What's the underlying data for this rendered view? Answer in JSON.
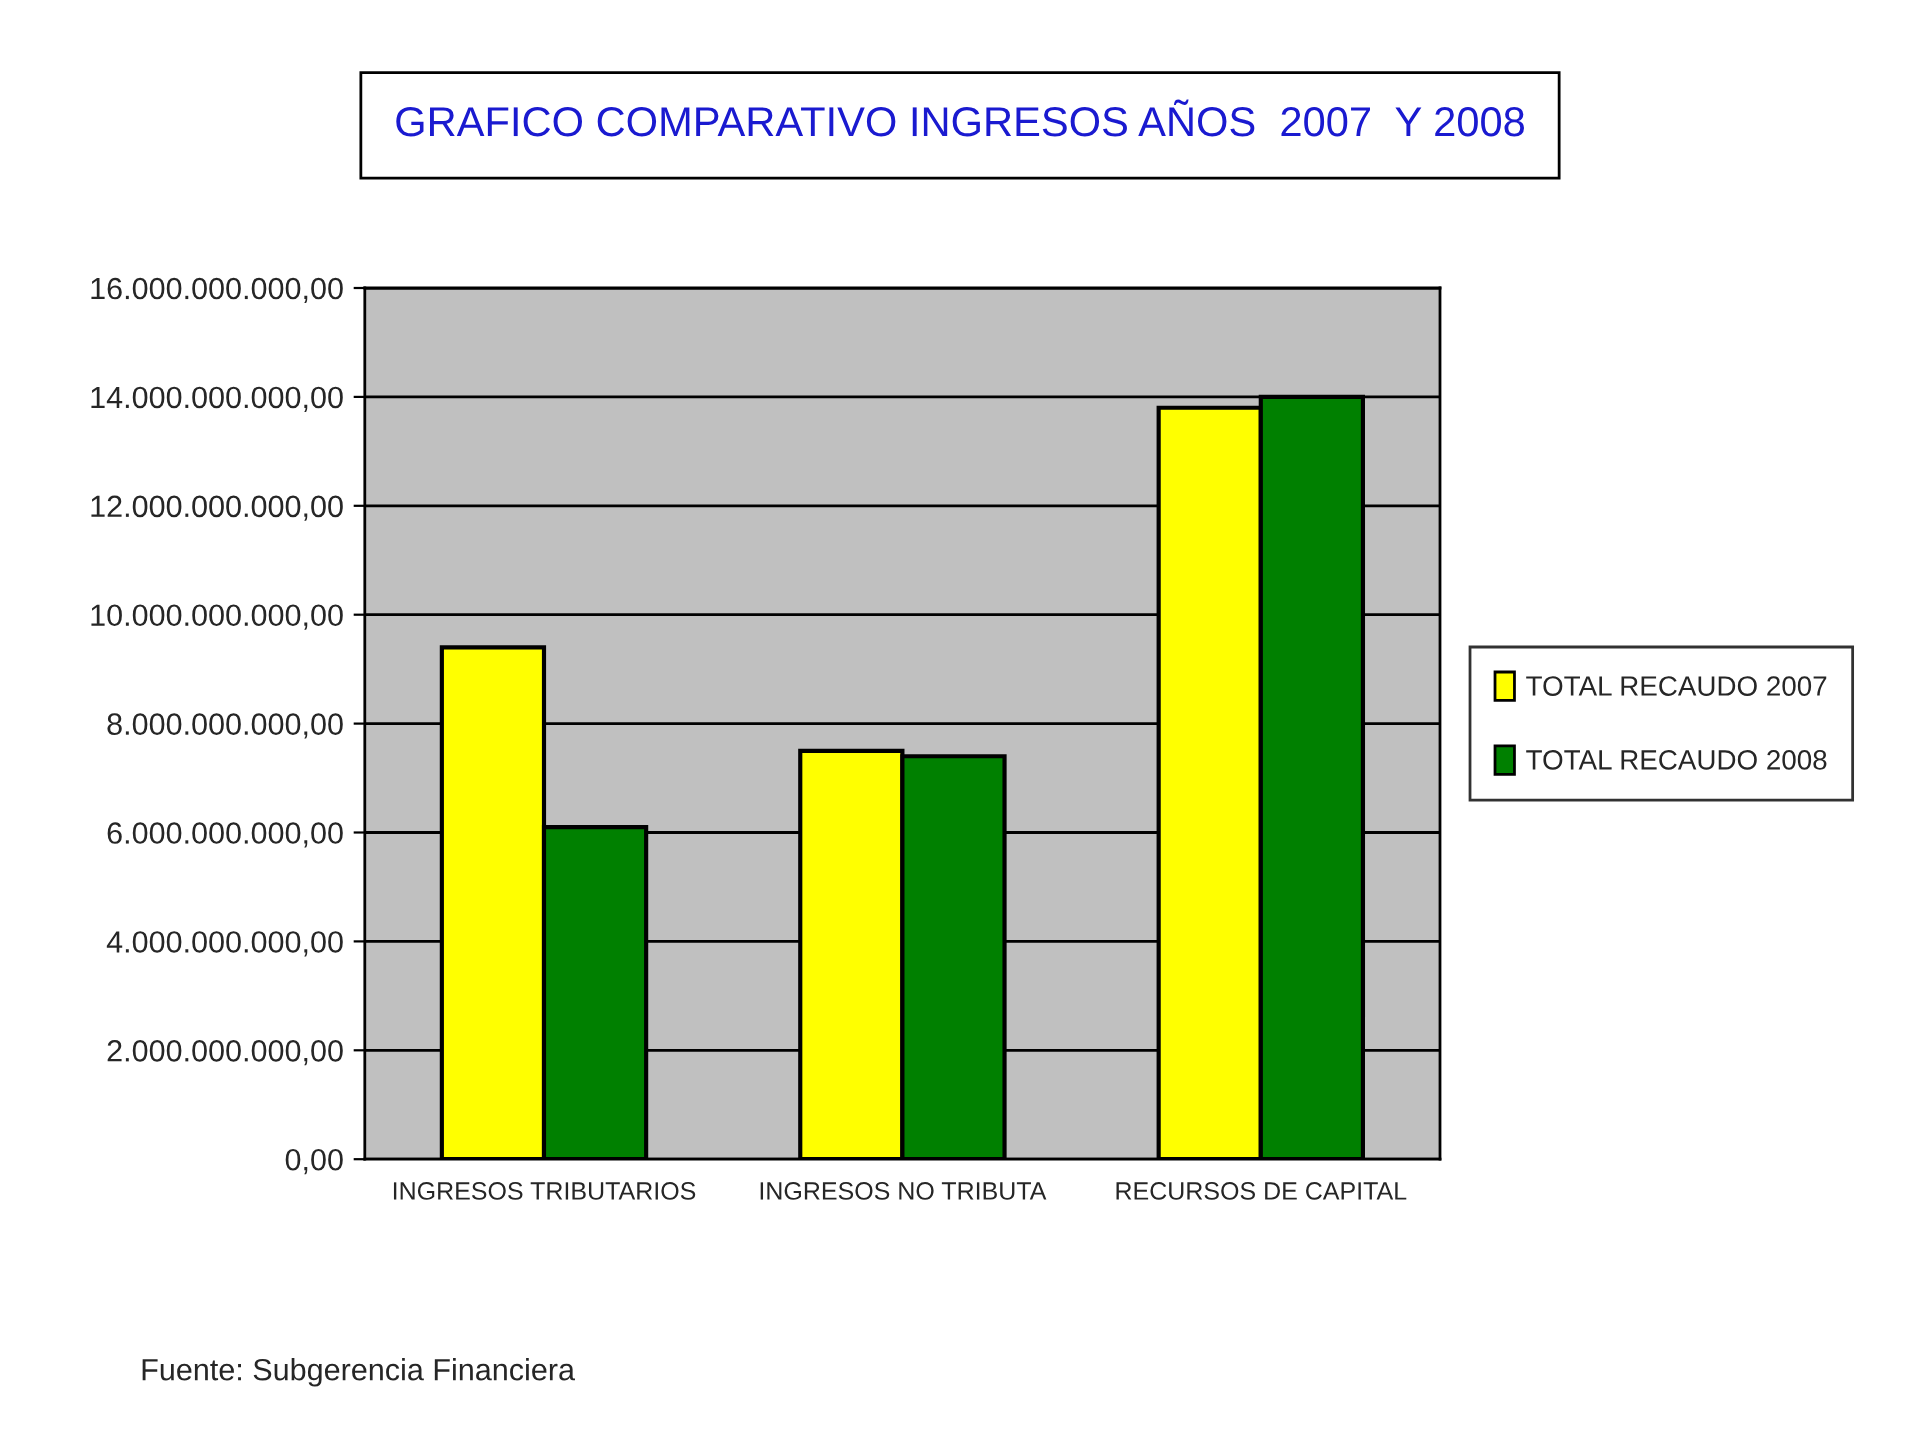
{
  "chart_data": {
    "type": "bar",
    "title": "GRAFICO COMPARATIVO INGRESOS AÑOS  2007  Y 2008",
    "categories": [
      "INGRESOS TRIBUTARIOS",
      "INGRESOS NO TRIBUTA",
      "RECURSOS DE CAPITAL"
    ],
    "series": [
      {
        "name": "TOTAL RECAUDO 2007",
        "color": "#ffff00",
        "values": [
          9400000000,
          7500000000,
          13800000000
        ]
      },
      {
        "name": "TOTAL RECAUDO 2008",
        "color": "#008000",
        "values": [
          6100000000,
          7400000000,
          14000000000
        ]
      }
    ],
    "ylim": [
      0,
      16000000000
    ],
    "yticks": [
      {
        "value": 0,
        "label": "0,00"
      },
      {
        "value": 2000000000,
        "label": "2.000.000.000,00"
      },
      {
        "value": 4000000000,
        "label": "4.000.000.000,00"
      },
      {
        "value": 6000000000,
        "label": "6.000.000.000,00"
      },
      {
        "value": 8000000000,
        "label": "8.000.000.000,00"
      },
      {
        "value": 10000000000,
        "label": "10.000.000.000,00"
      },
      {
        "value": 12000000000,
        "label": "12.000.000.000,00"
      },
      {
        "value": 14000000000,
        "label": "14.000.000.000,00"
      },
      {
        "value": 16000000000,
        "label": "16.000.000.000,00"
      }
    ],
    "grid": "y",
    "legend": "right",
    "annotations": [
      "Fuente: Subgerencia Financiera"
    ]
  }
}
